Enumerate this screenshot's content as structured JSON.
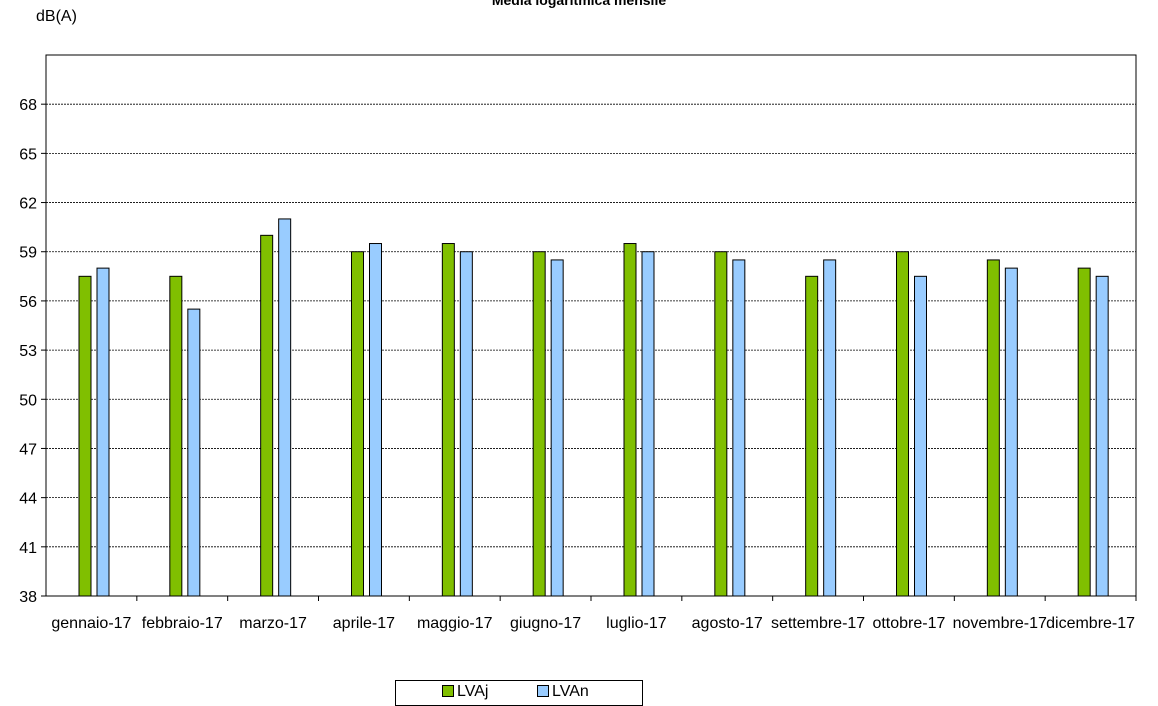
{
  "chart_data": {
    "type": "bar",
    "title": "Media logaritmica mensile",
    "ylabel": "dB(A)",
    "xlabel": "",
    "ylim": [
      38,
      71
    ],
    "yticks": [
      38,
      41,
      44,
      47,
      50,
      53,
      56,
      59,
      62,
      65,
      68
    ],
    "grid": true,
    "legend_position": "bottom",
    "categories": [
      "gennaio-17",
      "febbraio-17",
      "marzo-17",
      "aprile-17",
      "maggio-17",
      "giugno-17",
      "luglio-17",
      "agosto-17",
      "settembre-17",
      "ottobre-17",
      "novembre-17",
      "dicembre-17"
    ],
    "series": [
      {
        "name": "LVAj",
        "color": "#80BF00",
        "values": [
          57.5,
          57.5,
          60,
          59,
          59.5,
          59,
          59.5,
          59,
          57.5,
          59,
          58.5,
          58
        ]
      },
      {
        "name": "LVAn",
        "color": "#99CCFF",
        "values": [
          58,
          55.5,
          61,
          59.5,
          59,
          58.5,
          59,
          58.5,
          58.5,
          57.5,
          58,
          57.5
        ]
      }
    ]
  }
}
